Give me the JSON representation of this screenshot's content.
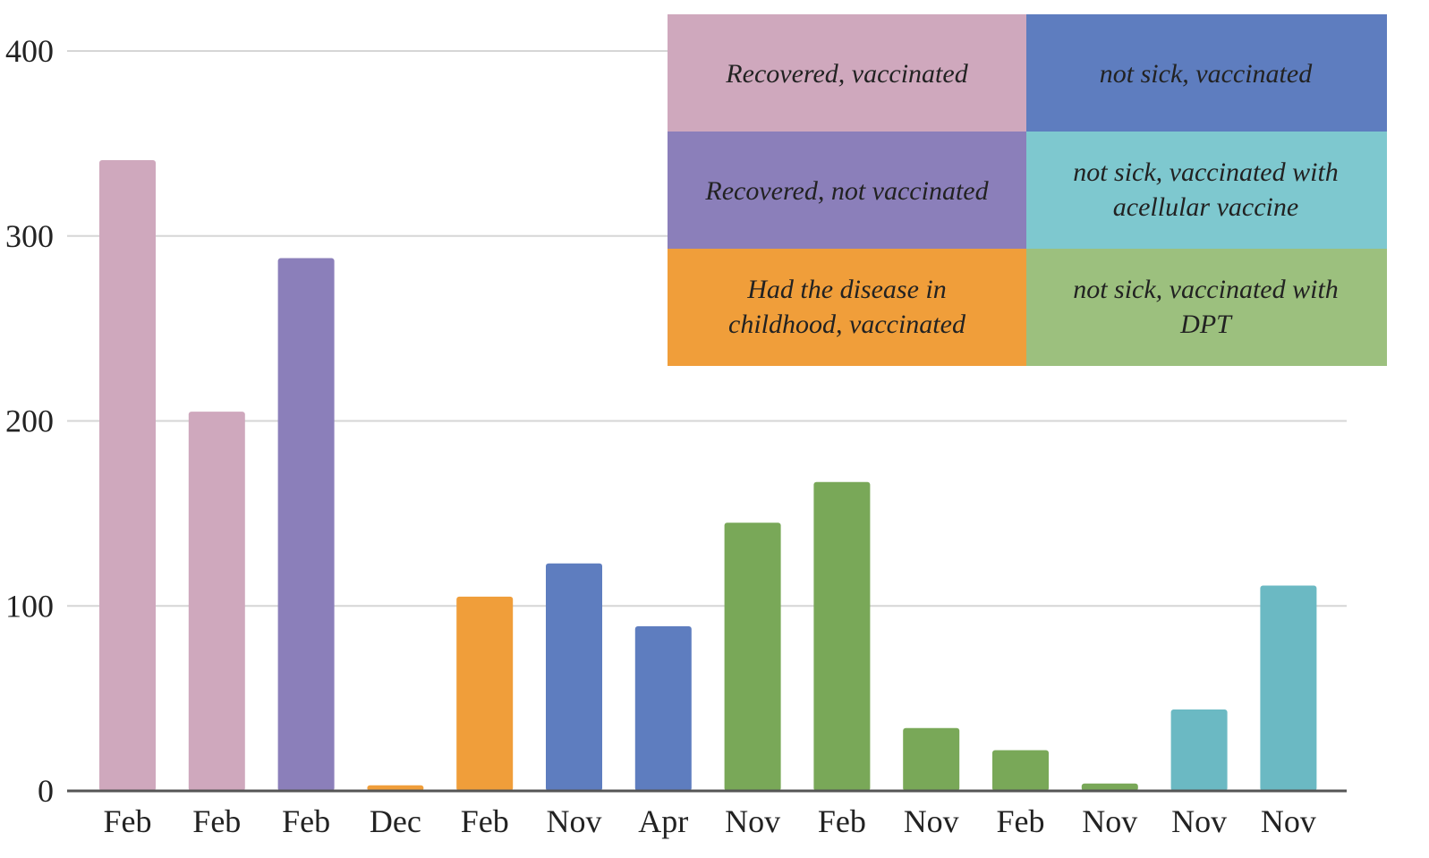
{
  "chart_data": {
    "type": "bar",
    "categories": [
      "Feb",
      "Feb",
      "Feb",
      "Dec",
      "Feb",
      "Nov",
      "Apr",
      "Nov",
      "Feb",
      "Nov",
      "Feb",
      "Nov",
      "Nov",
      "Nov"
    ],
    "values": [
      341,
      205,
      288,
      3,
      105,
      123,
      89,
      145,
      167,
      34,
      22,
      4,
      44,
      111
    ],
    "bar_groups": [
      0,
      0,
      1,
      2,
      2,
      3,
      3,
      4,
      4,
      4,
      4,
      4,
      5,
      5
    ],
    "ylim": [
      0,
      400
    ],
    "yticks": [
      0,
      100,
      200,
      300,
      400
    ],
    "grid": true,
    "legend_placement": "top-right",
    "legend": [
      {
        "label": "Recovered, vaccinated",
        "color": "#cfa8bd"
      },
      {
        "label": "not sick, vaccinated",
        "color": "#5e7dbf"
      },
      {
        "label": "Recovered, not vaccinated",
        "color": "#8b7fba"
      },
      {
        "label": "not sick, vaccinated with acellular vaccine",
        "color": "#7ec8cf"
      },
      {
        "label": "Had the disease in childhood, vaccinated",
        "color": "#f09e3a"
      },
      {
        "label": "not sick, vaccinated with DPT",
        "color": "#9cc07e"
      }
    ],
    "bar_colors": [
      "#cfa8bd",
      "#8b7fba",
      "#f09e3a",
      "#5e7dbf",
      "#79a858",
      "#6bb9c3"
    ]
  }
}
